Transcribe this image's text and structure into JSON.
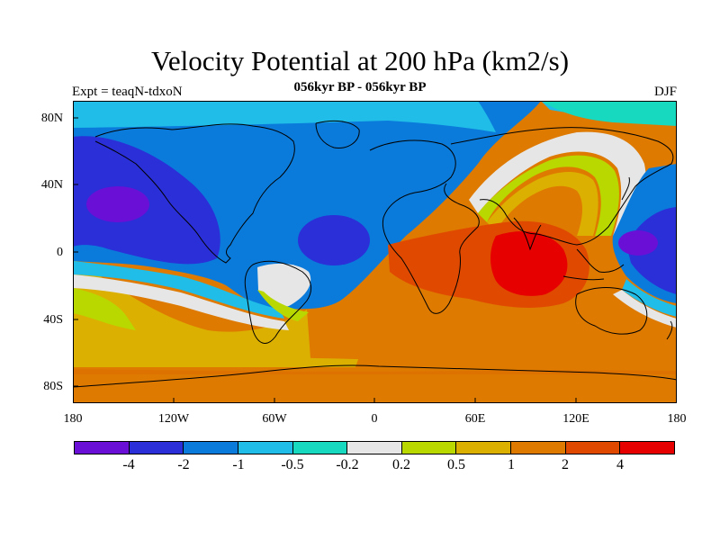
{
  "header": {
    "title": "Velocity Potential at 200 hPa (km2/s)",
    "subtitle": "056kyr BP - 056kyr BP",
    "left_label": "Expt = teaqN-tdxoN",
    "right_label": "DJF"
  },
  "axes": {
    "lat_labels": [
      "80N",
      "40N",
      "0",
      "40S",
      "80S"
    ],
    "lon_labels": [
      "180",
      "120W",
      "60W",
      "0",
      "60E",
      "120E",
      "180"
    ]
  },
  "colorbar": {
    "colors": [
      "#6a0fd6",
      "#2a2fd8",
      "#0b7bdb",
      "#1fbde8",
      "#17d9c0",
      "#e6e6e6",
      "#b8d800",
      "#dcb000",
      "#de7a00",
      "#e04a00",
      "#e60000"
    ],
    "labels": [
      "-4",
      "-2",
      "-1",
      "-0.5",
      "-0.2",
      "0.2",
      "0.5",
      "1",
      "2",
      "4"
    ]
  },
  "chart_data": {
    "type": "heatmap",
    "projection": "cylindrical equidistant",
    "variable": "Velocity Potential at 200 hPa",
    "units": "km2/s",
    "season": "DJF",
    "contour_levels": [
      -4,
      -2,
      -1,
      -0.5,
      -0.2,
      0.2,
      0.5,
      1,
      2,
      4
    ],
    "lon_range": [
      -180,
      180
    ],
    "lat_range": [
      -90,
      90
    ]
  }
}
